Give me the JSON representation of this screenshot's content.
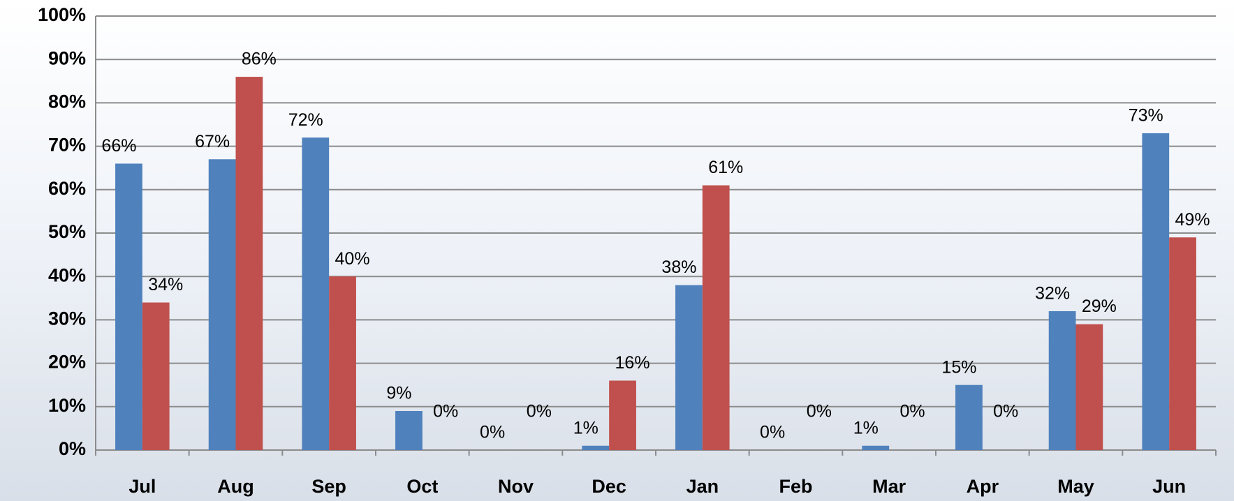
{
  "chart_data": {
    "type": "bar",
    "categories": [
      "Jul",
      "Aug",
      "Sep",
      "Oct",
      "Nov",
      "Dec",
      "Jan",
      "Feb",
      "Mar",
      "Apr",
      "May",
      "Jun"
    ],
    "series": [
      {
        "color": "#4f81bd",
        "values": [
          66,
          67,
          72,
          9,
          0,
          1,
          38,
          0,
          1,
          15,
          32,
          73
        ],
        "value_labels": [
          "66%",
          "67%",
          "72%",
          "9%",
          "0%",
          "1%",
          "38%",
          "0%",
          "1%",
          "15%",
          "32%",
          "73%"
        ]
      },
      {
        "color": "#c0504d",
        "values": [
          34,
          86,
          40,
          0,
          0,
          16,
          61,
          0,
          0,
          0,
          29,
          49
        ],
        "value_labels": [
          "34%",
          "86%",
          "40%",
          "0%",
          "0%",
          "16%",
          "61%",
          "0%",
          "0%",
          "0%",
          "29%",
          "49%"
        ]
      }
    ],
    "ylim": [
      0,
      100
    ],
    "yticks": [
      {
        "value": 0,
        "label": "0%"
      },
      {
        "value": 10,
        "label": "10%"
      },
      {
        "value": 20,
        "label": "20%"
      },
      {
        "value": 30,
        "label": "30%"
      },
      {
        "value": 40,
        "label": "40%"
      },
      {
        "value": 50,
        "label": "50%"
      },
      {
        "value": 60,
        "label": "60%"
      },
      {
        "value": 70,
        "label": "70%"
      },
      {
        "value": 80,
        "label": "80%"
      },
      {
        "value": 90,
        "label": "90%"
      },
      {
        "value": 100,
        "label": "100%"
      }
    ],
    "grid": true
  }
}
